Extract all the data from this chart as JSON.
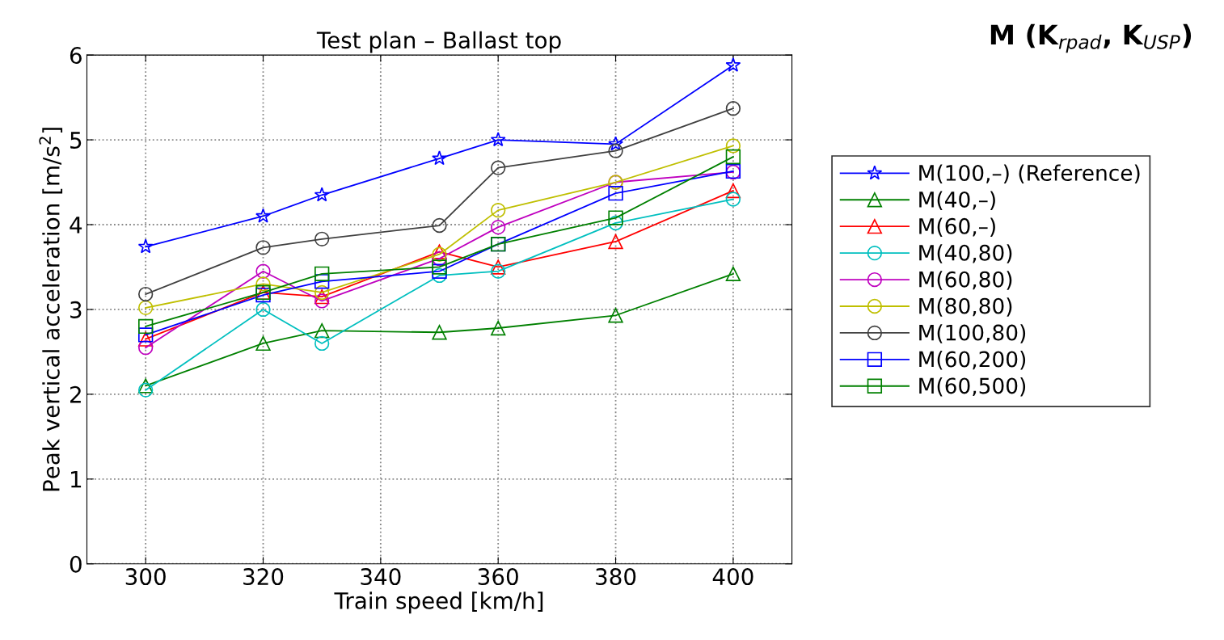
{
  "chart_data": {
    "type": "line",
    "title": "Test plan – Ballast top",
    "xlabel": "Train speed [km/h]",
    "ylabel": "Peak vertical acceleration [m/s$^{2}$]",
    "legend_title": "M (K$_{rpad}$, K$_{USP}$)",
    "x": [
      300,
      320,
      330,
      350,
      360,
      380,
      400
    ],
    "xlim": [
      290,
      410
    ],
    "xticks": [
      300,
      320,
      340,
      360,
      380,
      400
    ],
    "ylim": [
      0,
      6
    ],
    "yticks": [
      0,
      1,
      2,
      3,
      4,
      5,
      6
    ],
    "grid": true,
    "legend": "right",
    "line_style": "solid",
    "series": [
      {
        "name": "M(100,–) (Reference)",
        "color": "#0000ff",
        "marker": "star",
        "values": [
          3.74,
          4.1,
          4.35,
          4.78,
          5.0,
          4.95,
          5.88
        ]
      },
      {
        "name": "M(40,–)",
        "color": "#008000",
        "marker": "triangle",
        "values": [
          2.1,
          2.6,
          2.75,
          2.73,
          2.78,
          2.93,
          3.42
        ]
      },
      {
        "name": "M(60,–)",
        "color": "#ff0000",
        "marker": "triangle",
        "values": [
          2.65,
          3.2,
          3.15,
          3.68,
          3.5,
          3.8,
          4.4
        ]
      },
      {
        "name": "M(40,80)",
        "color": "#00bfbf",
        "marker": "circle",
        "values": [
          2.05,
          3.0,
          2.6,
          3.4,
          3.45,
          4.02,
          4.3
        ]
      },
      {
        "name": "M(60,80)",
        "color": "#bf00bf",
        "marker": "circle",
        "values": [
          2.55,
          3.45,
          3.1,
          3.6,
          3.97,
          4.5,
          4.62
        ]
      },
      {
        "name": "M(80,80)",
        "color": "#bfbf00",
        "marker": "circle",
        "values": [
          3.02,
          3.3,
          3.2,
          3.65,
          4.17,
          4.5,
          4.93
        ]
      },
      {
        "name": "M(100,80)",
        "color": "#404040",
        "marker": "circle",
        "values": [
          3.18,
          3.73,
          3.83,
          3.99,
          4.67,
          4.87,
          5.37
        ]
      },
      {
        "name": "M(60,200)",
        "color": "#0000ff",
        "marker": "square",
        "values": [
          2.7,
          3.17,
          3.33,
          3.45,
          3.77,
          4.37,
          4.63
        ]
      },
      {
        "name": "M(60,500)",
        "color": "#008000",
        "marker": "square",
        "values": [
          2.8,
          3.2,
          3.42,
          3.5,
          3.77,
          4.08,
          4.8
        ]
      }
    ]
  }
}
